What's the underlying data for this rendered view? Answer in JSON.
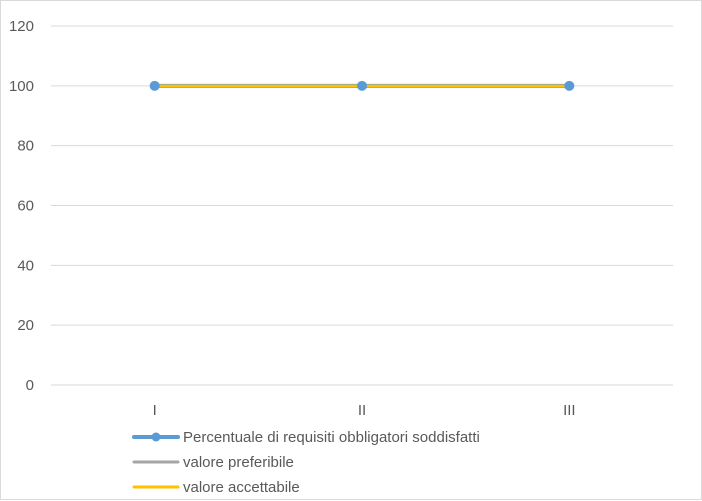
{
  "chart_data": {
    "type": "line",
    "title": "",
    "xlabel": "",
    "ylabel": "",
    "categories": [
      "I",
      "II",
      "III"
    ],
    "ylim": [
      0,
      120
    ],
    "yticks": [
      0,
      20,
      40,
      60,
      80,
      100,
      120
    ],
    "grid": true,
    "legend_position": "bottom",
    "series": [
      {
        "name": "Percentuale di requisiti obbligatori soddisfatti",
        "values": [
          100,
          100,
          100
        ],
        "color": "#5b9bd5",
        "markers": true
      },
      {
        "name": "valore preferibile",
        "values": [
          100,
          100,
          100
        ],
        "color": "#a5a5a5",
        "markers": false
      },
      {
        "name": "valore accettabile",
        "values": [
          100,
          100,
          100
        ],
        "color": "#ffc000",
        "markers": false
      }
    ]
  }
}
